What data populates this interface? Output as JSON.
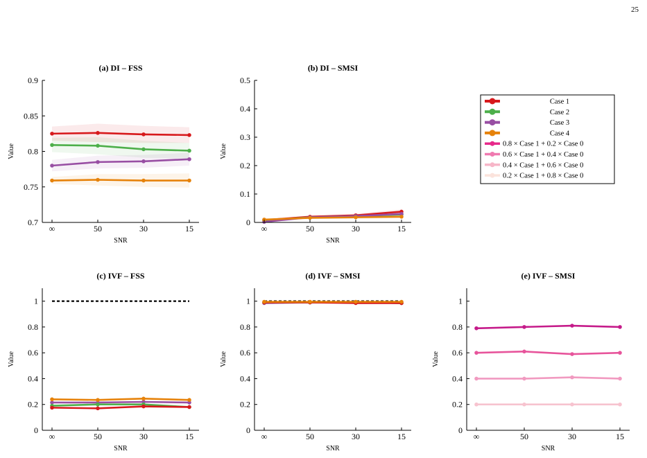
{
  "page_number": "25",
  "legend": [
    {
      "label": "Case 1",
      "color": "#d7191c"
    },
    {
      "label": "Case 2",
      "color": "#4daf4a"
    },
    {
      "label": "Case 3",
      "color": "#984ea3"
    },
    {
      "label": "Case 4",
      "color": "#e6820a"
    },
    {
      "label": "0.8 × Case 1 + 0.2 × Case 0",
      "color": "#e7298a"
    },
    {
      "label": "0.6 × Case 1 + 0.4 × Case 0",
      "color": "#f07ab0"
    },
    {
      "label": "0.4 × Case 1 + 0.6 × Case 0",
      "color": "#f7b6c8"
    },
    {
      "label": "0.2 × Case 1 + 0.8 × Case 0",
      "color": "#fbe3dc"
    }
  ],
  "chart_data": [
    {
      "type": "line",
      "title": "(a) DI – FSS",
      "xlabel": "SNR",
      "ylabel": "Value",
      "categories": [
        "∞",
        "50",
        "30",
        "15"
      ],
      "ylim": [
        0.7,
        0.9
      ],
      "yticks": [
        "0.7",
        "0.75",
        "0.8",
        "0.85",
        "0.9"
      ],
      "band": true,
      "series": [
        {
          "name": "Case 1",
          "color": "#d7191c",
          "values": [
            0.825,
            0.826,
            0.824,
            0.823
          ],
          "err": [
            0.01,
            0.013,
            0.012,
            0.011
          ]
        },
        {
          "name": "Case 2",
          "color": "#4daf4a",
          "values": [
            0.809,
            0.808,
            0.803,
            0.801
          ],
          "err": [
            0.01,
            0.012,
            0.012,
            0.011
          ]
        },
        {
          "name": "Case 3",
          "color": "#984ea3",
          "values": [
            0.78,
            0.785,
            0.786,
            0.789
          ],
          "err": [
            0.008,
            0.009,
            0.009,
            0.009
          ]
        },
        {
          "name": "Case 4",
          "color": "#e6820a",
          "values": [
            0.759,
            0.76,
            0.759,
            0.759
          ],
          "err": [
            0.005,
            0.008,
            0.009,
            0.01
          ]
        }
      ]
    },
    {
      "type": "line",
      "title": "(b) DI – SMSI",
      "xlabel": "SNR",
      "ylabel": "Value",
      "categories": [
        "∞",
        "50",
        "30",
        "15"
      ],
      "ylim": [
        0,
        0.5
      ],
      "yticks": [
        "0",
        "0.1",
        "0.2",
        "0.3",
        "0.4",
        "0.5"
      ],
      "band": true,
      "series": [
        {
          "name": "Case 1",
          "color": "#d7191c",
          "values": [
            0.008,
            0.02,
            0.025,
            0.038
          ],
          "err": [
            0.004,
            0.005,
            0.006,
            0.008
          ]
        },
        {
          "name": "Case 2",
          "color": "#4daf4a",
          "values": [
            0.007,
            0.018,
            0.022,
            0.028
          ],
          "err": [
            0.003,
            0.004,
            0.005,
            0.006
          ]
        },
        {
          "name": "Case 3",
          "color": "#984ea3",
          "values": [
            0.002,
            0.018,
            0.022,
            0.03
          ],
          "err": [
            0.003,
            0.004,
            0.005,
            0.006
          ]
        },
        {
          "name": "Case 4",
          "color": "#e6820a",
          "values": [
            0.01,
            0.016,
            0.018,
            0.02
          ],
          "err": [
            0.003,
            0.004,
            0.005,
            0.005
          ]
        }
      ]
    },
    {
      "type": "line",
      "title": "(c) IVF – FSS",
      "xlabel": "SNR",
      "ylabel": "Value",
      "categories": [
        "∞",
        "50",
        "30",
        "15"
      ],
      "ylim": [
        0,
        1.1
      ],
      "yticks": [
        "0",
        "0.2",
        "0.4",
        "0.6",
        "0.8",
        "1"
      ],
      "reference": 1.0,
      "series": [
        {
          "name": "Case 3",
          "color": "#984ea3",
          "values": [
            0.215,
            0.215,
            0.22,
            0.215
          ]
        },
        {
          "name": "Case 2",
          "color": "#4daf4a",
          "values": [
            0.19,
            0.2,
            0.2,
            0.18
          ]
        },
        {
          "name": "Case 4",
          "color": "#e6820a",
          "values": [
            0.24,
            0.235,
            0.245,
            0.235
          ]
        },
        {
          "name": "Case 1",
          "color": "#d7191c",
          "values": [
            0.175,
            0.17,
            0.185,
            0.18
          ]
        }
      ]
    },
    {
      "type": "line",
      "title": "(d) IVF – SMSI",
      "xlabel": "SNR",
      "ylabel": "Value",
      "categories": [
        "∞",
        "50",
        "30",
        "15"
      ],
      "ylim": [
        0,
        1.1
      ],
      "yticks": [
        "0",
        "0.2",
        "0.4",
        "0.6",
        "0.8",
        "1"
      ],
      "reference": 1.0,
      "series": [
        {
          "name": "Case 3",
          "color": "#984ea3",
          "values": [
            0.985,
            0.99,
            0.99,
            0.985
          ]
        },
        {
          "name": "Case 2",
          "color": "#4daf4a",
          "values": [
            0.99,
            0.99,
            0.99,
            0.985
          ]
        },
        {
          "name": "Case 1",
          "color": "#d7191c",
          "values": [
            0.99,
            0.99,
            0.985,
            0.985
          ]
        },
        {
          "name": "Case 4",
          "color": "#e6820a",
          "values": [
            0.995,
            0.995,
            0.995,
            0.995
          ]
        }
      ]
    },
    {
      "type": "line",
      "title": "(e) IVF – SMSI",
      "xlabel": "SNR",
      "ylabel": "Value",
      "categories": [
        "∞",
        "50",
        "30",
        "15"
      ],
      "ylim": [
        0,
        1.1
      ],
      "yticks": [
        "0",
        "0.2",
        "0.4",
        "0.6",
        "0.8",
        "1"
      ],
      "series": [
        {
          "name": "0.8 × Case 1 + 0.2 × Case 0",
          "color": "#c51b8a",
          "values": [
            0.79,
            0.8,
            0.81,
            0.8
          ]
        },
        {
          "name": "0.6 × Case 1 + 0.4 × Case 0",
          "color": "#e7549b",
          "values": [
            0.6,
            0.61,
            0.59,
            0.6
          ]
        },
        {
          "name": "0.4 × Case 1 + 0.6 × Case 0",
          "color": "#f19ac0",
          "values": [
            0.4,
            0.4,
            0.41,
            0.4
          ]
        },
        {
          "name": "0.2 × Case 1 + 0.8 × Case 0",
          "color": "#f7c3cf",
          "values": [
            0.2,
            0.2,
            0.2,
            0.2
          ]
        }
      ]
    }
  ]
}
